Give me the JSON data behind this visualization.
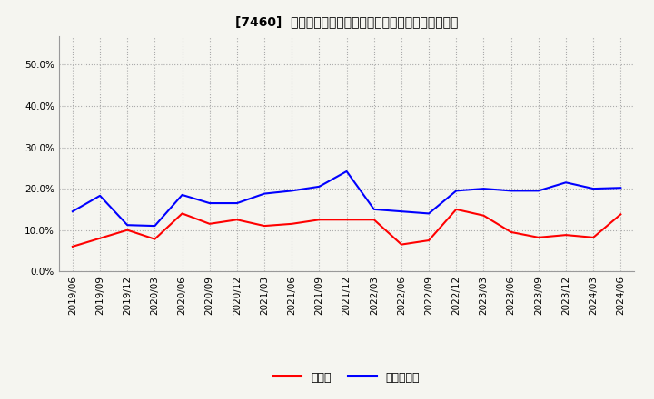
{
  "title": "[7460]  現預金、有利子負債の総資産に対する比率の推移",
  "ylim": [
    0.0,
    0.57
  ],
  "yticks": [
    0.0,
    0.1,
    0.2,
    0.3,
    0.4,
    0.5
  ],
  "x_labels": [
    "2019/06",
    "2019/09",
    "2019/12",
    "2020/03",
    "2020/06",
    "2020/09",
    "2020/12",
    "2021/03",
    "2021/06",
    "2021/09",
    "2021/12",
    "2022/03",
    "2022/06",
    "2022/09",
    "2022/12",
    "2023/03",
    "2023/06",
    "2023/09",
    "2023/12",
    "2024/03",
    "2024/06"
  ],
  "cash_values": [
    0.06,
    0.08,
    0.1,
    0.078,
    0.14,
    0.115,
    0.125,
    0.11,
    0.115,
    0.125,
    0.125,
    0.125,
    0.065,
    0.075,
    0.15,
    0.135,
    0.095,
    0.082,
    0.088,
    0.082,
    0.138
  ],
  "debt_values": [
    0.145,
    0.183,
    0.112,
    0.11,
    0.185,
    0.165,
    0.165,
    0.188,
    0.195,
    0.205,
    0.242,
    0.15,
    0.145,
    0.14,
    0.195,
    0.2,
    0.195,
    0.195,
    0.215,
    0.2,
    0.202
  ],
  "cash_color": "#ff0000",
  "debt_color": "#0000ff",
  "background_color": "#f5f5f0",
  "plot_bg_color": "#f5f5f0",
  "grid_color": "#aaaaaa",
  "legend_labels": [
    "現預金",
    "有利子負債"
  ],
  "title_fontsize": 10,
  "tick_fontsize": 7.5,
  "legend_fontsize": 9,
  "line_width": 1.5
}
